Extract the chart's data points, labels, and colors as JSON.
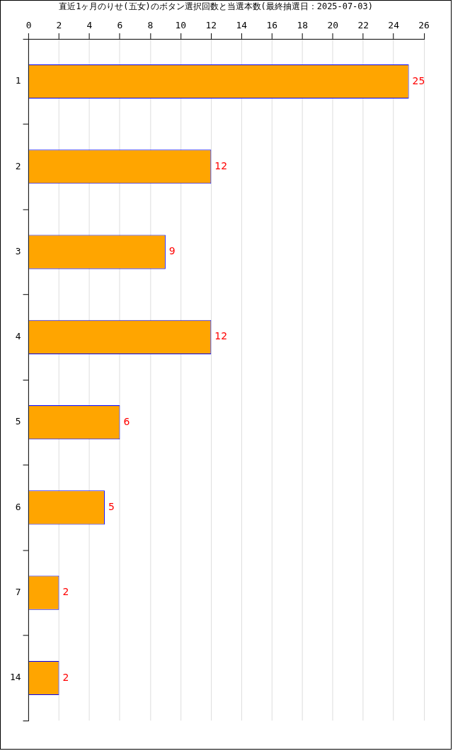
{
  "chart_data": {
    "type": "bar",
    "orientation": "horizontal",
    "title": "直近1ヶ月のりせ(五女)のボタン選択回数と当選本数(最終抽選日：2025-07-03)",
    "categories": [
      "1",
      "2",
      "3",
      "4",
      "5",
      "6",
      "7",
      "14"
    ],
    "values": [
      25,
      12,
      9,
      12,
      6,
      5,
      2,
      2
    ],
    "color": "#ffa500",
    "xlim": [
      0,
      26
    ],
    "xticks": [
      0,
      2,
      4,
      6,
      8,
      10,
      12,
      14,
      16,
      18,
      20,
      22,
      24,
      26
    ],
    "grid": "x",
    "data_labels": true,
    "legend": false
  }
}
